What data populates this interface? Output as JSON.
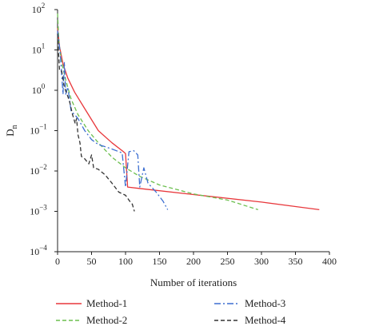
{
  "chart_data": {
    "type": "line",
    "title": "",
    "xlabel": "Number of iterations",
    "ylabel": "D",
    "ylabel_sub": "n",
    "y_scale": "log",
    "xlim": [
      0,
      400
    ],
    "ylim_exp": [
      -4,
      2
    ],
    "x_ticks": [
      0,
      50,
      100,
      150,
      200,
      250,
      300,
      350,
      400
    ],
    "y_ticks_exp": [
      -4,
      -3,
      -2,
      -1,
      0,
      1,
      2
    ],
    "grid": false,
    "legend_position": "bottom",
    "series": [
      {
        "name": "Method-1",
        "color": "#e8373b",
        "dash": "",
        "points": [
          [
            0,
            35
          ],
          [
            3,
            12
          ],
          [
            8,
            4.5
          ],
          [
            15,
            2
          ],
          [
            25,
            0.9
          ],
          [
            40,
            0.35
          ],
          [
            60,
            0.1
          ],
          [
            80,
            0.05
          ],
          [
            97,
            0.03
          ],
          [
            100,
            0.027
          ],
          [
            103,
            0.004
          ],
          [
            120,
            0.0037
          ],
          [
            200,
            0.0026
          ],
          [
            300,
            0.0017
          ],
          [
            385,
            0.0011
          ]
        ]
      },
      {
        "name": "Method-2",
        "color": "#6cbf4f",
        "dash": "5,3",
        "points": [
          [
            0,
            80
          ],
          [
            2,
            15
          ],
          [
            6,
            5
          ],
          [
            12,
            1.8
          ],
          [
            20,
            0.6
          ],
          [
            30,
            0.25
          ],
          [
            45,
            0.1
          ],
          [
            60,
            0.05
          ],
          [
            80,
            0.022
          ],
          [
            100,
            0.012
          ],
          [
            120,
            0.0075
          ],
          [
            150,
            0.0045
          ],
          [
            200,
            0.0027
          ],
          [
            250,
            0.0019
          ],
          [
            295,
            0.0011
          ]
        ]
      },
      {
        "name": "Method-3",
        "color": "#3d6fd1",
        "dash": "8,3,2,3",
        "points": [
          [
            0,
            30
          ],
          [
            4,
            8
          ],
          [
            8,
            0.8
          ],
          [
            10,
            5
          ],
          [
            12,
            0.8
          ],
          [
            15,
            1.2
          ],
          [
            20,
            0.3
          ],
          [
            25,
            0.25
          ],
          [
            30,
            0.2
          ],
          [
            40,
            0.1
          ],
          [
            50,
            0.06
          ],
          [
            60,
            0.045
          ],
          [
            70,
            0.04
          ],
          [
            80,
            0.035
          ],
          [
            95,
            0.028
          ],
          [
            100,
            0.004
          ],
          [
            105,
            0.03
          ],
          [
            112,
            0.032
          ],
          [
            118,
            0.025
          ],
          [
            121,
            0.004
          ],
          [
            127,
            0.012
          ],
          [
            133,
            0.005
          ],
          [
            145,
            0.003
          ],
          [
            155,
            0.0018
          ],
          [
            162,
            0.0011
          ]
        ]
      },
      {
        "name": "Method-4",
        "color": "#333333",
        "dash": "5,3",
        "points": [
          [
            0,
            25
          ],
          [
            3,
            3
          ],
          [
            6,
            3
          ],
          [
            10,
            1.2
          ],
          [
            14,
            0.8
          ],
          [
            18,
            0.5
          ],
          [
            22,
            0.25
          ],
          [
            26,
            0.15
          ],
          [
            28,
            0.2
          ],
          [
            30,
            0.08
          ],
          [
            33,
            0.05
          ],
          [
            35,
            0.023
          ],
          [
            40,
            0.02
          ],
          [
            46,
            0.015
          ],
          [
            50,
            0.025
          ],
          [
            53,
            0.012
          ],
          [
            60,
            0.011
          ],
          [
            70,
            0.008
          ],
          [
            80,
            0.005
          ],
          [
            90,
            0.003
          ],
          [
            100,
            0.0025
          ],
          [
            106,
            0.0018
          ],
          [
            110,
            0.0015
          ],
          [
            113,
            0.001
          ]
        ]
      }
    ]
  }
}
